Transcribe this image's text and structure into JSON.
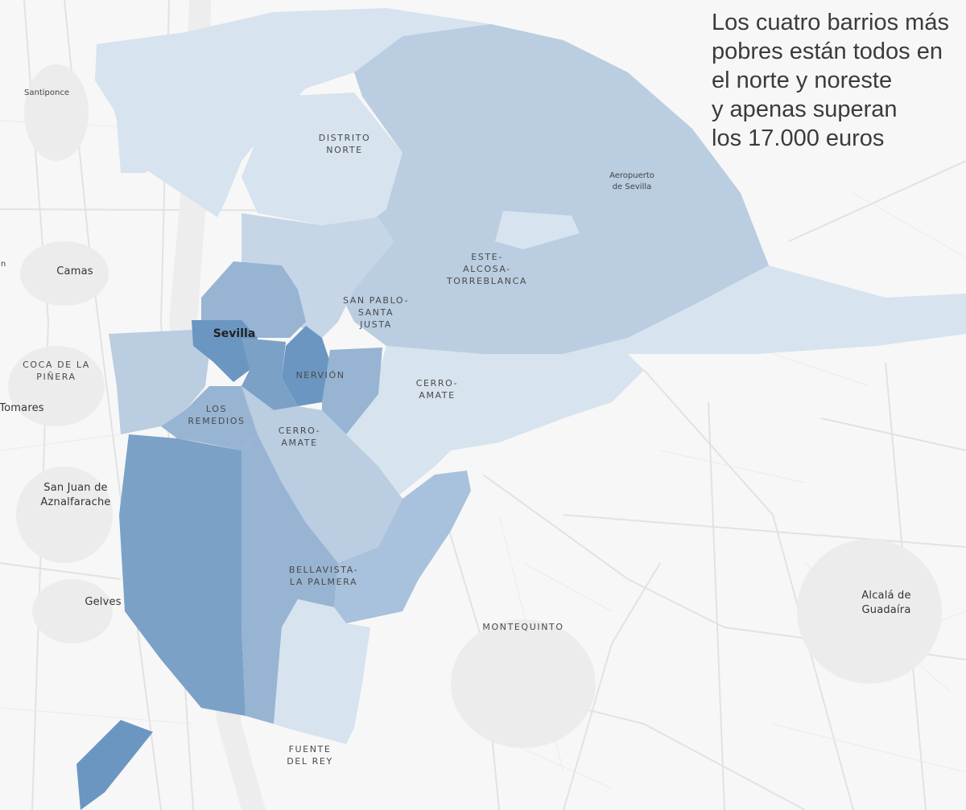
{
  "headline": [
    "Los cuatro barrios más",
    "pobres están todos en",
    "el norte y noreste",
    "y apenas superan",
    "los 17.000 euros"
  ],
  "colors": {
    "background": "#f7f7f7",
    "road": "#e4e4e4",
    "shade_light": "#d7e3ee",
    "shade_mid_light": "#bacde1",
    "shade_mid": "#97b4d3",
    "shade_dark": "#7ba1c7",
    "shade_darkest": "#6b96c1"
  },
  "labels": {
    "distrito_norte": [
      "DISTRITO",
      "NORTE"
    ],
    "aeropuerto": [
      "Aeropuerto",
      "de Sevilla"
    ],
    "este": [
      "ESTE-",
      "ALCOSA-",
      "TORREBLANCA"
    ],
    "san_pablo": [
      "SAN PABLO-",
      "SANTA",
      "JUSTA"
    ],
    "sevilla": [
      "Sevilla"
    ],
    "nervion": [
      "NERVIÓN"
    ],
    "cerro_amate_east": [
      "CERRO-",
      "AMATE"
    ],
    "los_remedios": [
      "LOS",
      "REMEDIOS"
    ],
    "cerro_amate_south": [
      "CERRO-",
      "AMATE"
    ],
    "bellavista": [
      "BELLAVISTA-",
      "LA PALMERA"
    ],
    "montequinto": [
      "MONTEQUINTO"
    ],
    "fuente_del_rey": [
      "FUENTE",
      "DEL REY"
    ],
    "santiponce": [
      "Santiponce"
    ],
    "camas": [
      "Camas"
    ],
    "coca": [
      "COCA DE LA",
      "PIÑERA"
    ],
    "tomares": [
      "Tomares"
    ],
    "san_juan": [
      "San Juan de",
      "Aznalfarache"
    ],
    "gelves": [
      "Gelves"
    ],
    "alcala": [
      "Alcalá de",
      "Guadaíra"
    ],
    "cut_n": [
      "n"
    ]
  }
}
